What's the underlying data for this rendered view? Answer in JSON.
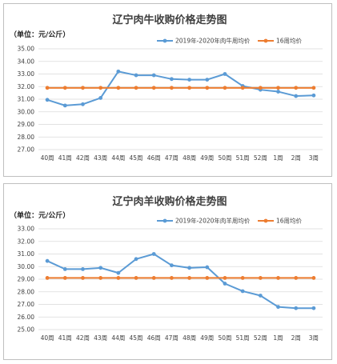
{
  "colors": {
    "series_blue": "#5b9bd5",
    "series_orange": "#ed7d31"
  },
  "chart_data": [
    {
      "type": "line",
      "title": "辽宁肉牛收购价格走势图",
      "unit_label": "（单位：元/公斤）",
      "categories": [
        "40周",
        "41周",
        "42周",
        "43周",
        "44周",
        "45周",
        "46周",
        "47周",
        "48周",
        "49周",
        "50周",
        "51周",
        "52周",
        "1周",
        "2周",
        "3周"
      ],
      "ylim": [
        27.0,
        35.0
      ],
      "yticks": [
        "35.00",
        "34.00",
        "33.00",
        "32.00",
        "31.00",
        "30.00",
        "29.00",
        "28.00",
        "27.00"
      ],
      "grid": true,
      "legend_position": "top-right",
      "series": [
        {
          "name": "2019年-2020年肉牛周均价",
          "color": "#5b9bd5",
          "values": [
            30.95,
            30.5,
            30.6,
            31.1,
            33.2,
            32.9,
            32.9,
            32.6,
            32.55,
            32.55,
            33.0,
            32.05,
            31.75,
            31.6,
            31.25,
            31.3
          ]
        },
        {
          "name": "16周均价",
          "color": "#ed7d31",
          "values": [
            31.9,
            31.9,
            31.9,
            31.9,
            31.9,
            31.9,
            31.9,
            31.9,
            31.9,
            31.9,
            31.9,
            31.9,
            31.9,
            31.9,
            31.9,
            31.9
          ]
        }
      ]
    },
    {
      "type": "line",
      "title": "辽宁肉羊收购价格走势图",
      "unit_label": "（单位：元/公斤）",
      "categories": [
        "40周",
        "41周",
        "42周",
        "43周",
        "44周",
        "45周",
        "46周",
        "47周",
        "48周",
        "49周",
        "50周",
        "51周",
        "52周",
        "1周",
        "2周",
        "3周"
      ],
      "ylim": [
        25.0,
        33.0
      ],
      "yticks": [
        "33.00",
        "32.00",
        "31.00",
        "30.00",
        "29.00",
        "28.00",
        "27.00",
        "26.00",
        "25.00"
      ],
      "grid": true,
      "legend_position": "top-right",
      "series": [
        {
          "name": "2019年-2020年肉羊周均价",
          "color": "#5b9bd5",
          "values": [
            30.45,
            29.8,
            29.8,
            29.9,
            29.5,
            30.6,
            31.0,
            30.1,
            29.9,
            29.95,
            28.65,
            28.05,
            27.7,
            26.8,
            26.7,
            26.7
          ]
        },
        {
          "name": "16周均价",
          "color": "#ed7d31",
          "values": [
            29.1,
            29.1,
            29.1,
            29.1,
            29.1,
            29.1,
            29.1,
            29.1,
            29.1,
            29.1,
            29.1,
            29.1,
            29.1,
            29.1,
            29.1,
            29.1
          ]
        }
      ]
    }
  ]
}
